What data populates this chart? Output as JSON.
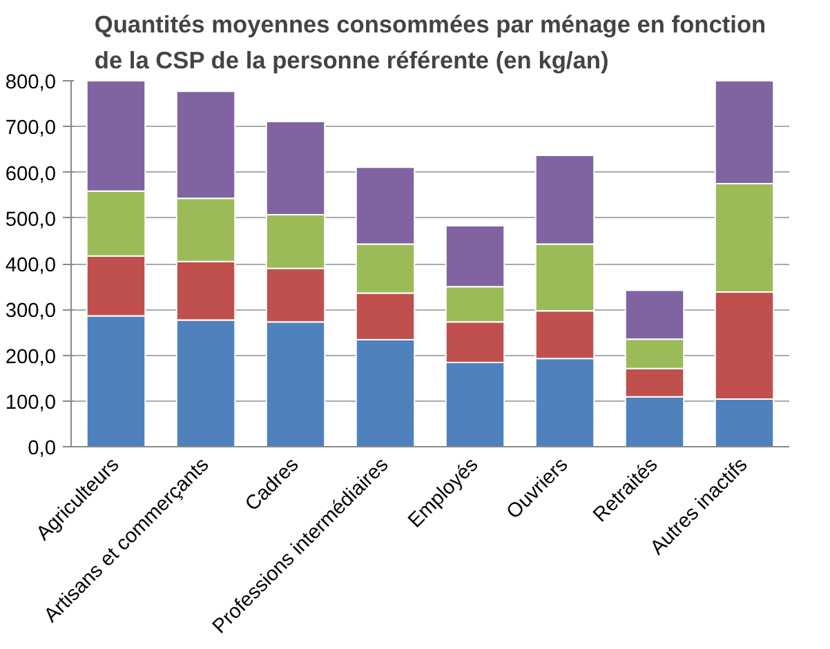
{
  "chart_data": {
    "type": "bar",
    "stacked": true,
    "title": "Quantités moyennes consommées par ménage en fonction de la CSP de la personne référente (en kg/an)",
    "categories": [
      "Agriculteurs",
      "Artisans et commerçants",
      "Cadres",
      "Professions intermédiaires",
      "Employés",
      "Ouvriers",
      "Retraités",
      "Autres inactifs"
    ],
    "series": [
      {
        "color": "#4f81bd",
        "values": [
          286,
          277,
          273,
          234,
          184,
          193,
          109,
          104
        ]
      },
      {
        "color": "#c0504d",
        "values": [
          131,
          128,
          117,
          102,
          89,
          104,
          62,
          234
        ]
      },
      {
        "color": "#9bbb59",
        "values": [
          142,
          138,
          117,
          107,
          77,
          146,
          64,
          237
        ]
      },
      {
        "color": "#8064a2",
        "values": [
          241,
          234,
          204,
          168,
          133,
          194,
          107,
          225
        ]
      }
    ],
    "ylim": [
      0,
      800
    ],
    "yticks": [
      {
        "value": 0,
        "label": "0,0"
      },
      {
        "value": 100,
        "label": "100,0"
      },
      {
        "value": 200,
        "label": "200,0"
      },
      {
        "value": 300,
        "label": "300,0"
      },
      {
        "value": 400,
        "label": "400,0"
      },
      {
        "value": 500,
        "label": "500,0"
      },
      {
        "value": 600,
        "label": "600,0"
      },
      {
        "value": 700,
        "label": "700,0"
      },
      {
        "value": 800,
        "label": "800,0"
      }
    ],
    "grid": "y"
  }
}
